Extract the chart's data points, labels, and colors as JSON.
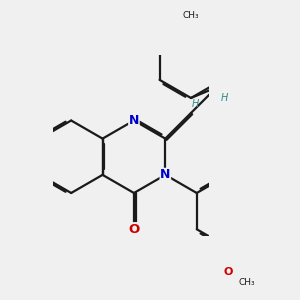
{
  "bg_color": "#f0f0f0",
  "bond_color": "#1a1a1a",
  "n_color": "#0000cc",
  "o_color": "#cc0000",
  "h_color": "#2e8b8b",
  "lw": 1.6,
  "dbo": 0.048,
  "xlim": [
    -0.5,
    3.8
  ],
  "ylim": [
    -2.2,
    2.8
  ],
  "figsize": [
    3.0,
    3.0
  ],
  "dpi": 100
}
